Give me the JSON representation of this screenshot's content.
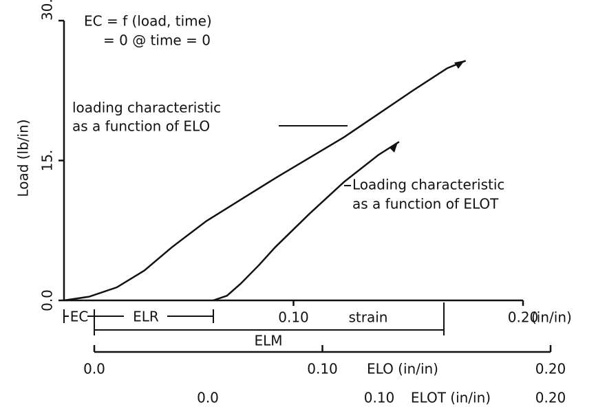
{
  "chart_data": {
    "type": "line",
    "y_label": "Load (lb/in)",
    "x_label": "(in/in)",
    "xlim": [
      0,
      0.2
    ],
    "ylim": [
      0,
      30
    ],
    "yticks": [
      {
        "value": 0,
        "label": "0.0"
      },
      {
        "value": 15,
        "label": "15."
      },
      {
        "value": 30,
        "label": "30."
      }
    ],
    "xticks": [
      {
        "value": 0.1,
        "label": "0.10"
      },
      {
        "value": 0.2,
        "label": "0.20"
      }
    ],
    "series": [
      {
        "color": "#111111",
        "x": [
          0,
          0.011,
          0.023,
          0.035,
          0.047,
          0.062,
          0.077,
          0.092,
          0.107,
          0.122,
          0.137,
          0.152,
          0.167,
          0.175
        ],
        "values": [
          0,
          0.4,
          1.4,
          3.2,
          5.7,
          8.5,
          10.8,
          13.1,
          15.3,
          17.5,
          20.0,
          22.5,
          24.9,
          25.7
        ]
      },
      {
        "color": "#111111",
        "x": [
          0.065,
          0.071,
          0.077,
          0.085,
          0.092,
          0.107,
          0.122,
          0.137,
          0.146
        ],
        "values": [
          0,
          0.5,
          1.8,
          3.8,
          5.7,
          9.3,
          12.7,
          15.6,
          17.0
        ]
      }
    ],
    "annotations": [
      "EC = f (load, time)",
      "= 0 @ time = 0",
      "loading characteristic",
      "as a function of ELO",
      "Loading characteristic",
      "as a function of ELOT",
      "EC",
      "ELR",
      "ELM",
      "strain"
    ],
    "elo_axis": {
      "label": "ELO (in/in)",
      "xlim": [
        0,
        0.2
      ],
      "xticks": [
        {
          "value": 0,
          "label": "0.0"
        },
        {
          "value": 0.1,
          "label": "0.10"
        },
        {
          "value": 0.2,
          "label": "0.20"
        }
      ]
    },
    "elot_axis": {
      "label": "ELOT (in/in)",
      "xlim": [
        0,
        0.2
      ],
      "xticks": [
        {
          "value": 0,
          "label": "0.0"
        },
        {
          "value": 0.1,
          "label": "0.10"
        },
        {
          "value": 0.2,
          "label": "0.20"
        }
      ]
    }
  }
}
